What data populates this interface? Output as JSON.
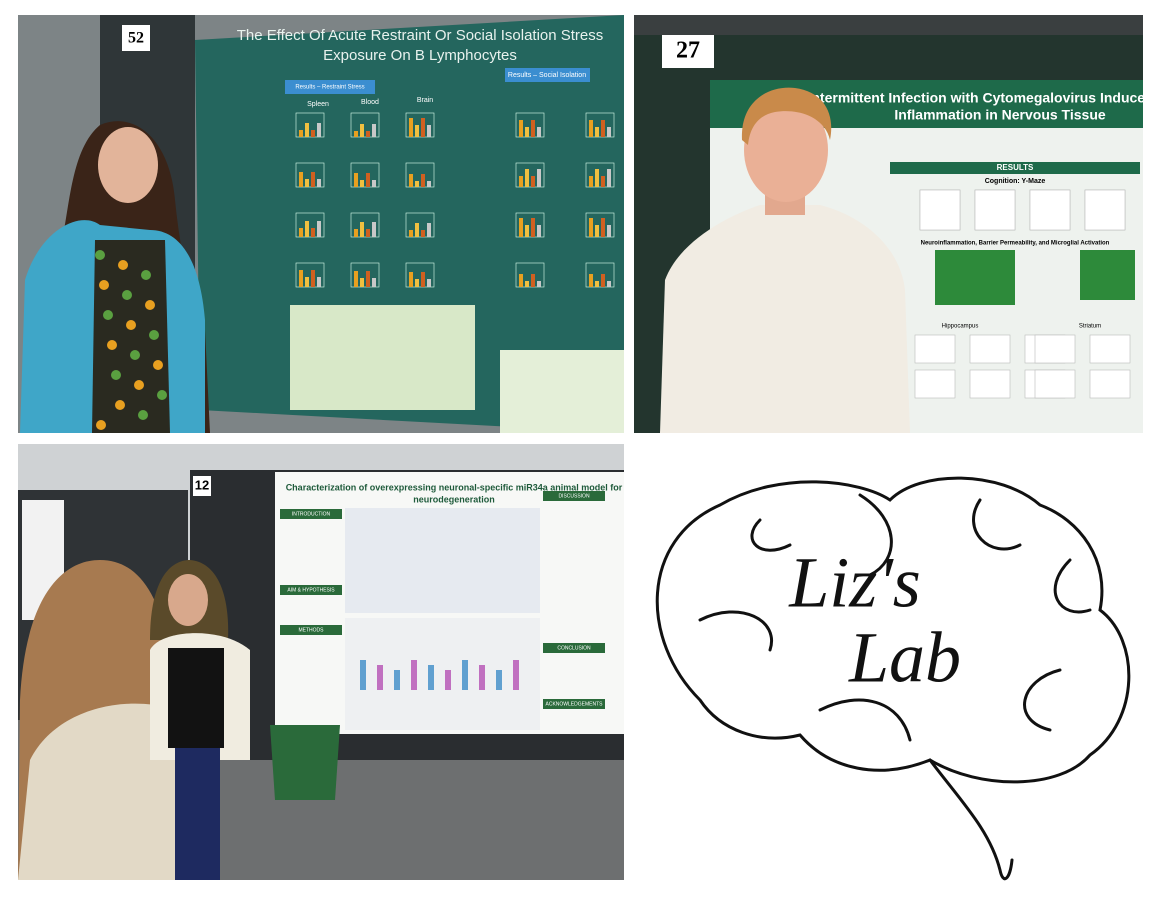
{
  "photos": [
    {
      "number": "52",
      "title": [
        "The Effect Of Acute Restraint Or Social Isolation Stress",
        "Exposure On B Lymphocytes"
      ],
      "headings": [
        "Results – Restraint Stress",
        "Results – Social Isolation",
        "Spleen",
        "Blood",
        "Brain"
      ]
    },
    {
      "number": "27",
      "title": [
        "Intermittent Infection with Cytomegalovirus Induces Cogn",
        "Inflammation in Nervous Tissue"
      ],
      "headings": [
        "RESULTS",
        "Cognition: Y-Maze",
        "Neuroinflammation, Barrier Permeability, and Microglial Activation",
        "Hippocampus",
        "Striatum"
      ]
    },
    {
      "number": "12",
      "title": [
        "Characterization of overexpressing neuronal-specific miR34a animal model for",
        "neurodegeneration"
      ],
      "headings": [
        "INTRODUCTION",
        "AIM & HYPOTHESIS",
        "METHODS",
        "DISCUSSION",
        "CONCLUSION",
        "ACKNOWLEDGEMENTS"
      ]
    }
  ],
  "logo": {
    "line1": "Liz's",
    "line2": "Lab"
  }
}
